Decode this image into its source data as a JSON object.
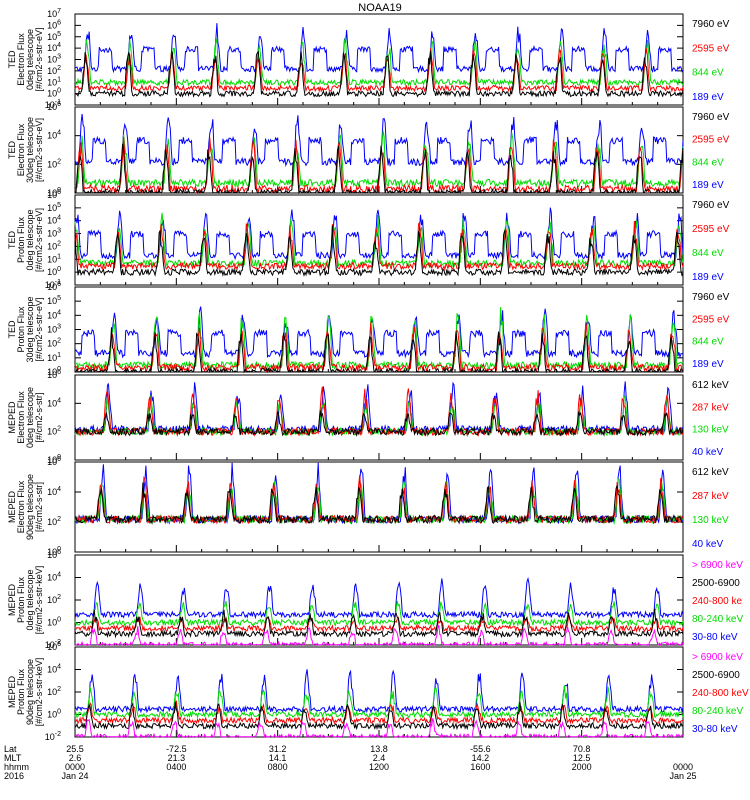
{
  "figure_title": "NOAA19",
  "colors": {
    "black": "#000000",
    "red": "#ff0000",
    "green": "#00dd00",
    "blue": "#0000ff",
    "magenta": "#ff00ff"
  },
  "chart_data": [
    {
      "type": "line",
      "ylabel": [
        "TED",
        "Electron Flux",
        "0deg telescope",
        "[#/cm2-s-str-eV]"
      ],
      "yscale": "log",
      "ylim": [
        0.1,
        10000000
      ],
      "ticks": [
        "10^-1",
        "10^0",
        "10^1",
        "10^2",
        "10^3",
        "10^4",
        "10^5",
        "10^6",
        "10^7"
      ],
      "legend": [
        {
          "name": "7960 eV",
          "color": "black"
        },
        {
          "name": "2595 eV",
          "color": "red"
        },
        {
          "name": "844 eV",
          "color": "green"
        },
        {
          "name": "189 eV",
          "color": "blue"
        }
      ],
      "levels": {
        "black": [
          1,
          10000
        ],
        "red": [
          3,
          10000
        ],
        "green": [
          10,
          100000
        ],
        "blue": [
          150,
          1000000
        ]
      }
    },
    {
      "type": "line",
      "ylabel": [
        "TED",
        "Electron Flux",
        "30deg telescope",
        "[#/cm2-s-str-eV]"
      ],
      "yscale": "log",
      "ylim": [
        1,
        1000000
      ],
      "ticks": [
        "10^0",
        "10^2",
        "10^4",
        "10^6"
      ],
      "legend": [
        {
          "name": "7960 eV",
          "color": "black"
        },
        {
          "name": "2595 eV",
          "color": "red"
        },
        {
          "name": "844 eV",
          "color": "green"
        },
        {
          "name": "189 eV",
          "color": "blue"
        }
      ],
      "levels": {
        "black": [
          1,
          3000
        ],
        "red": [
          2,
          10000
        ],
        "green": [
          5,
          30000
        ],
        "blue": [
          150,
          300000
        ]
      }
    },
    {
      "type": "line",
      "ylabel": [
        "TED",
        "Proton Flux",
        "0deg telescope",
        "[#/cm2-s-str-eV]"
      ],
      "yscale": "log",
      "ylim": [
        0.1,
        1000000
      ],
      "ticks": [
        "10^-1",
        "10^0",
        "10^1",
        "10^2",
        "10^3",
        "10^4",
        "10^5",
        "10^6"
      ],
      "legend": [
        {
          "name": "7960 eV",
          "color": "black"
        },
        {
          "name": "2595 eV",
          "color": "red"
        },
        {
          "name": "844 eV",
          "color": "green"
        },
        {
          "name": "189 eV",
          "color": "blue"
        }
      ],
      "levels": {
        "black": [
          1,
          3000
        ],
        "red": [
          3,
          10000
        ],
        "green": [
          5,
          30000
        ],
        "blue": [
          20,
          100000
        ]
      }
    },
    {
      "type": "line",
      "ylabel": [
        "TED",
        "Proton Flux",
        "30deg telescope",
        "[#/cm2-s-str-eV]"
      ],
      "yscale": "log",
      "ylim": [
        1,
        1000000
      ],
      "ticks": [
        "10^0",
        "10^1",
        "10^2",
        "10^3",
        "10^4",
        "10^5",
        "10^6"
      ],
      "legend": [
        {
          "name": "7960 eV",
          "color": "black"
        },
        {
          "name": "2595 eV",
          "color": "red"
        },
        {
          "name": "844 eV",
          "color": "green"
        },
        {
          "name": "189 eV",
          "color": "blue"
        }
      ],
      "levels": {
        "black": [
          1,
          1000
        ],
        "red": [
          2,
          3000
        ],
        "green": [
          3,
          30000
        ],
        "blue": [
          20,
          30000
        ]
      }
    },
    {
      "type": "line",
      "ylabel": [
        "MEPED",
        "Electron Flux",
        "0deg telescope",
        "[#/cm2-s-str]"
      ],
      "yscale": "log",
      "ylim": [
        1,
        1000000
      ],
      "ticks": [
        "10^0",
        "10^2",
        "10^4",
        "10^6"
      ],
      "legend": [
        {
          "name": "612 keV",
          "color": "black"
        },
        {
          "name": "287 keV",
          "color": "red"
        },
        {
          "name": "130 keV",
          "color": "green"
        },
        {
          "name": "40 keV",
          "color": "blue"
        }
      ],
      "levels": {
        "black": [
          100,
          3000
        ],
        "red": [
          100,
          100000
        ],
        "green": [
          100,
          30000
        ],
        "blue": [
          150,
          300000
        ]
      }
    },
    {
      "type": "line",
      "ylabel": [
        "MEPED",
        "Electron Flux",
        "90deg telescope",
        "[#/cm2-s-str]"
      ],
      "yscale": "log",
      "ylim": [
        1,
        1000000
      ],
      "ticks": [
        "10^0",
        "10^2",
        "10^4",
        "10^6"
      ],
      "legend": [
        {
          "name": "612 keV",
          "color": "black"
        },
        {
          "name": "287 keV",
          "color": "red"
        },
        {
          "name": "130 keV",
          "color": "green"
        },
        {
          "name": "40 keV",
          "color": "blue"
        }
      ],
      "levels": {
        "black": [
          150,
          30000
        ],
        "red": [
          150,
          100000
        ],
        "green": [
          150,
          100000
        ],
        "blue": [
          150,
          1000000
        ]
      }
    },
    {
      "type": "line",
      "ylabel": [
        "MEPED",
        "Proton Flux",
        "0deg telescope",
        "[#/cm2-s-str-keV]"
      ],
      "yscale": "log",
      "ylim": [
        0.01,
        1000000
      ],
      "ticks": [
        "10^-2",
        "10^0",
        "10^2",
        "10^4",
        "10^6"
      ],
      "legend": [
        {
          "name": "> 6900 keV",
          "color": "magenta"
        },
        {
          "name": "2500-6900",
          "color": "black"
        },
        {
          "name": "240-800 ke",
          "color": "red"
        },
        {
          "name": "80-240 keV",
          "color": "green"
        },
        {
          "name": "30-80 keV",
          "color": "blue"
        }
      ],
      "levels": {
        "magenta": [
          0.01,
          0.5
        ],
        "black": [
          0.1,
          10
        ],
        "red": [
          0.3,
          3
        ],
        "green": [
          1,
          100
        ],
        "blue": [
          5,
          10000
        ]
      }
    },
    {
      "type": "line",
      "ylabel": [
        "MEPED",
        "Proton Flux",
        "90deg telescope",
        "[#/cm2-s-str-keV]"
      ],
      "yscale": "log",
      "ylim": [
        0.01,
        1000000
      ],
      "ticks": [
        "10^-2",
        "10^0",
        "10^2",
        "10^4",
        "10^6"
      ],
      "legend": [
        {
          "name": "> 6900 keV",
          "color": "magenta"
        },
        {
          "name": "2500-6900",
          "color": "black"
        },
        {
          "name": "240-800 keV",
          "color": "red"
        },
        {
          "name": "80-240 keV",
          "color": "green"
        },
        {
          "name": "30-80 keV",
          "color": "blue"
        }
      ],
      "levels": {
        "magenta": [
          0.01,
          0.5
        ],
        "black": [
          0.1,
          10
        ],
        "red": [
          0.3,
          10
        ],
        "green": [
          1,
          300
        ],
        "blue": [
          3,
          10000
        ]
      }
    }
  ],
  "time_axis": {
    "row_labels": [
      "Lat",
      "MLT",
      "hhmm",
      "2016"
    ],
    "columns": [
      {
        "values": [
          "25.5",
          "2.6",
          "0000",
          "Jan 24"
        ]
      },
      {
        "values": [
          "-72.5",
          "21.3",
          "0400",
          ""
        ]
      },
      {
        "values": [
          "31.2",
          "14.1",
          "0800",
          ""
        ]
      },
      {
        "values": [
          "13.8",
          "2.4",
          "1200",
          ""
        ]
      },
      {
        "values": [
          "-55.6",
          "14.2",
          "1600",
          ""
        ]
      },
      {
        "values": [
          "70.8",
          "12.5",
          "2000",
          ""
        ]
      },
      {
        "values": [
          "",
          "",
          "0000",
          "Jan 25"
        ]
      }
    ],
    "xlim_hours": [
      0,
      24
    ],
    "column_hours": [
      0,
      4,
      8,
      12,
      16,
      20,
      24
    ]
  }
}
